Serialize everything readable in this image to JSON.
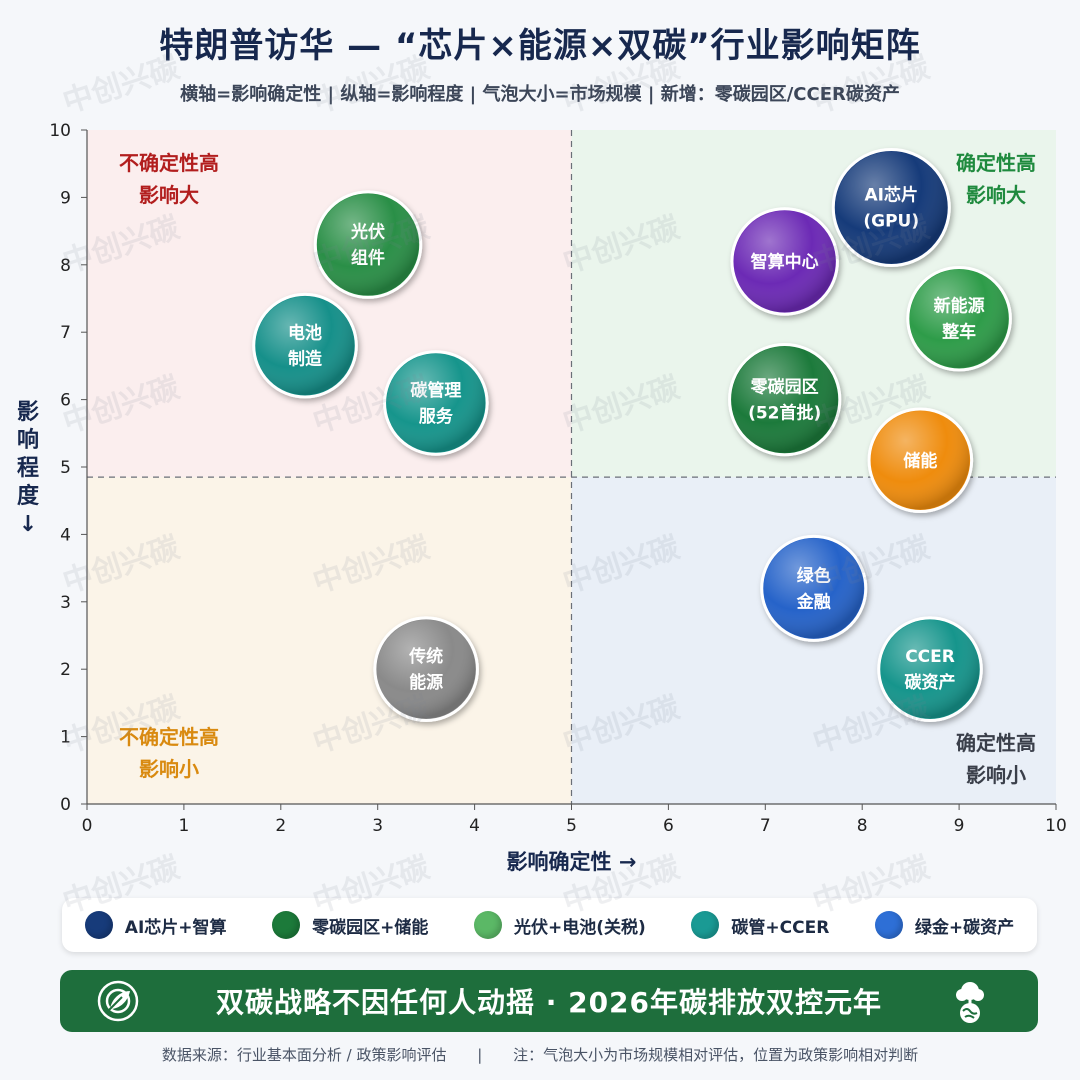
{
  "header": {
    "title": "特朗普访华 — “芯片×能源×双碳”行业影响矩阵",
    "subtitle": "横轴=影响确定性 | 纵轴=影响程度 | 气泡大小=市场规模 | 新增：零碳园区/CCER碳资产"
  },
  "chart_data": {
    "type": "scatter",
    "xlabel": "影响确定性 →",
    "ylabel": "影响程度↓",
    "xlim": [
      0,
      10
    ],
    "ylim": [
      0,
      10
    ],
    "x_ticks": [
      "0",
      "1",
      "2",
      "3",
      "4",
      "5",
      "6",
      "7",
      "8",
      "9",
      "10"
    ],
    "y_ticks": [
      "0",
      "1",
      "2",
      "3",
      "4",
      "5",
      "6",
      "7",
      "8",
      "9",
      "10"
    ],
    "divider_x": 5,
    "divider_y": 4.85,
    "quadrants": [
      {
        "label": "不确定性高\n影响大",
        "position": "top-left",
        "color": "#b21e1e",
        "fill": "#fbeeee"
      },
      {
        "label": "确定性高\n影响大",
        "position": "top-right",
        "color": "#1f8a3e",
        "fill": "#eaf5ec"
      },
      {
        "label": "不确定性高\n影响小",
        "position": "bottom-left",
        "color": "#d98a10",
        "fill": "#fbf4e8"
      },
      {
        "label": "确定性高\n影响小",
        "position": "bottom-right",
        "color": "#3a3f4a",
        "fill": "#e9eff7"
      }
    ],
    "points": [
      {
        "label": "AI芯片\n(GPU)",
        "x": 8.3,
        "y": 8.85,
        "size": 1.0,
        "color": "#173b7a"
      },
      {
        "label": "智算中心",
        "x": 7.2,
        "y": 8.05,
        "size": 0.78,
        "color": "#6c2bb5"
      },
      {
        "label": "新能源\n整车",
        "x": 9.0,
        "y": 7.2,
        "size": 0.72,
        "color": "#2f9c48"
      },
      {
        "label": "零碳园区\n(52首批)",
        "x": 7.2,
        "y": 6.0,
        "size": 0.88,
        "color": "#1c7a3a"
      },
      {
        "label": "储能",
        "x": 8.6,
        "y": 5.1,
        "size": 0.72,
        "color": "#ef8c0e"
      },
      {
        "label": "光伏\n组件",
        "x": 2.9,
        "y": 8.3,
        "size": 0.78,
        "color": "#2a8f46"
      },
      {
        "label": "电池\n制造",
        "x": 2.25,
        "y": 6.8,
        "size": 0.72,
        "color": "#16908a"
      },
      {
        "label": "碳管理\n服务",
        "x": 3.6,
        "y": 5.95,
        "size": 0.72,
        "color": "#17958c"
      },
      {
        "label": "绿色\n金融",
        "x": 7.5,
        "y": 3.2,
        "size": 0.75,
        "color": "#2563c9"
      },
      {
        "label": "CCER\n碳资产",
        "x": 8.7,
        "y": 2.0,
        "size": 0.72,
        "color": "#14958c"
      },
      {
        "label": "传统\n能源",
        "x": 3.5,
        "y": 2.0,
        "size": 0.72,
        "color": "#8a8a8a"
      }
    ]
  },
  "legend": {
    "items": [
      {
        "label": "AI芯片+智算",
        "color": "#173b7a"
      },
      {
        "label": "零碳园区+储能",
        "color": "#1c7a3a"
      },
      {
        "label": "光伏+电池(关税)",
        "color": "#5bb866"
      },
      {
        "label": "碳管+CCER",
        "color": "#1a9a94"
      },
      {
        "label": "绿金+碳资产",
        "color": "#2e6fd6"
      }
    ]
  },
  "banner": {
    "text": "双碳战略不因任何人动摇 · 2026年碳排放双控元年",
    "left_icon": "target-leaf-icon",
    "right_icon": "tree-globe-icon"
  },
  "footer": {
    "source": "数据来源：行业基本面分析 / 政策影响评估",
    "separator": "|",
    "note": "注：气泡大小为市场规模相对评估，位置为政策影响相对判断"
  },
  "watermark": "中创兴碳"
}
